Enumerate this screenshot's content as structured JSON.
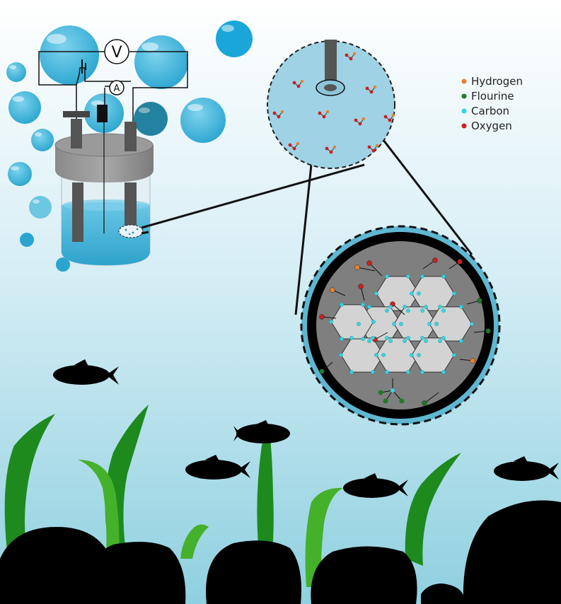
{
  "meters": {
    "voltmeter": "V",
    "ammeter": "A"
  },
  "legend": [
    {
      "label": "Hydrogen",
      "color": "#e8802c"
    },
    {
      "label": "Flourine",
      "color": "#1f7a2a"
    },
    {
      "label": "Carbon",
      "color": "#33d6e0"
    },
    {
      "label": "Oxygen",
      "color": "#cc1f1f"
    }
  ],
  "colors": {
    "water_top": "#ffffff",
    "water_bottom": "#8fd0e0",
    "bubble": "#3fb0d3",
    "seaweed": "#1e8a1e",
    "seaweed_light": "#45b02a",
    "rock": "#000000",
    "solution": "#46b4d8",
    "graphene_sheet": "#d3d3d3"
  }
}
